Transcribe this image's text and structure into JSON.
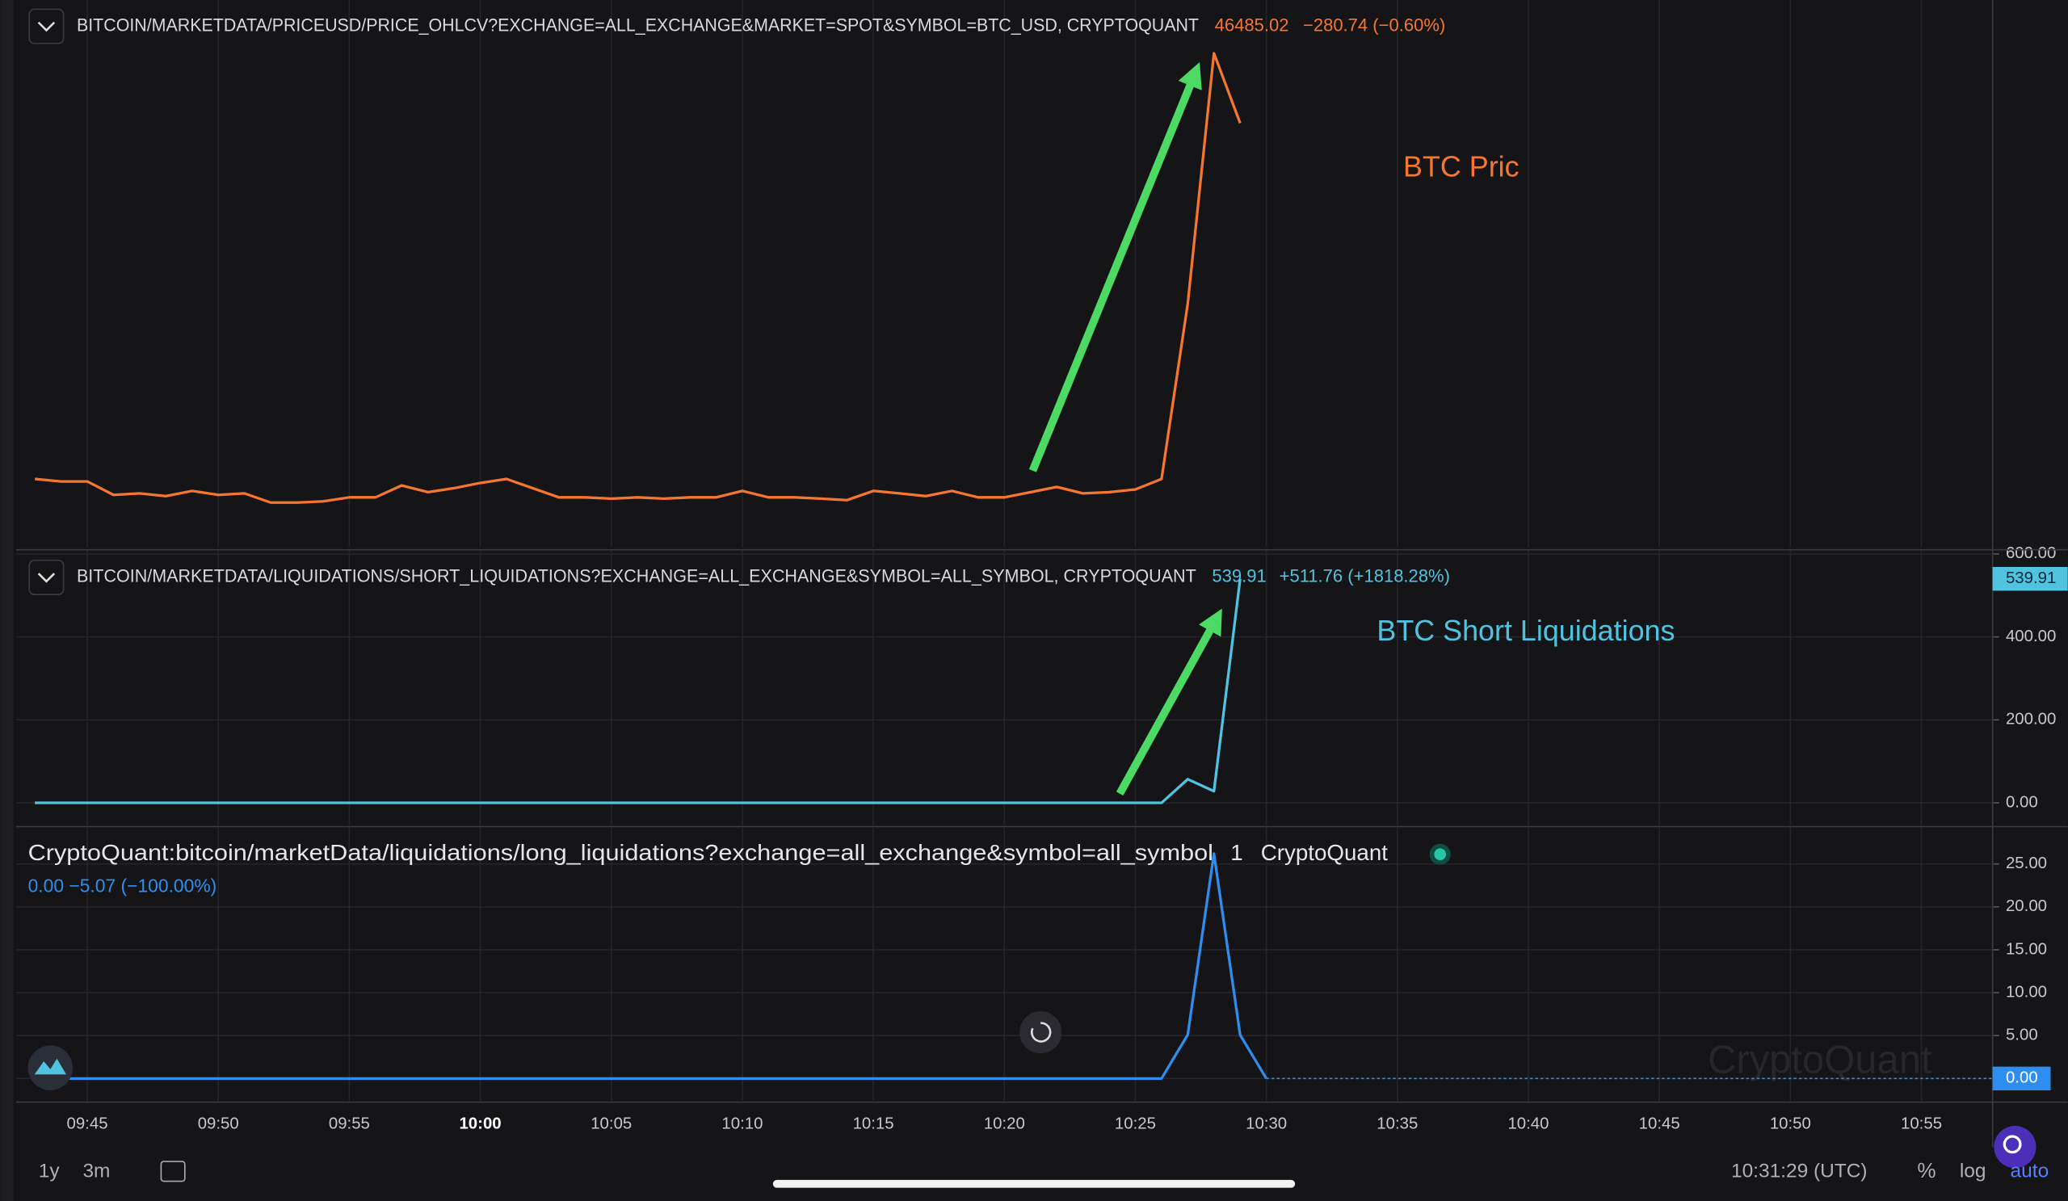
{
  "chart_data": [
    {
      "type": "line",
      "header": "BITCOIN/MARKETDATA/PRICEUSD/PRICE_OHLCV?EXCHANGE=ALL_EXCHANGE&MARKET=SPOT&SYMBOL=BTC_USD, CRYPTOQUANT",
      "change": "−280.74 (−0.60%)",
      "annotation": "BTC Pric",
      "color": "#f7762f",
      "ylim": [
        44780,
        46980
      ],
      "x": [
        "09:43",
        "09:44",
        "09:45",
        "09:46",
        "09:47",
        "09:48",
        "09:49",
        "09:50",
        "09:51",
        "09:52",
        "09:53",
        "09:54",
        "09:55",
        "09:56",
        "09:57",
        "09:58",
        "09:59",
        "10:00",
        "10:01",
        "10:02",
        "10:03",
        "10:04",
        "10:05",
        "10:06",
        "10:07",
        "10:08",
        "10:09",
        "10:10",
        "10:11",
        "10:12",
        "10:13",
        "10:14",
        "10:15",
        "10:16",
        "10:17",
        "10:18",
        "10:19",
        "10:20",
        "10:21",
        "10:22",
        "10:23",
        "10:24",
        "10:25",
        "10:26",
        "10:27",
        "10:28",
        "10:29"
      ],
      "values": [
        45054,
        45044,
        45044,
        44990,
        44996,
        44985,
        45006,
        44990,
        44996,
        44959,
        44959,
        44964,
        44980,
        44980,
        45028,
        45001,
        45017,
        45038,
        45054,
        45017,
        44980,
        44980,
        44975,
        44980,
        44975,
        44980,
        44980,
        45006,
        44980,
        44980,
        44975,
        44969,
        45006,
        44996,
        44985,
        45006,
        44980,
        44980,
        45001,
        45022,
        44996,
        45001,
        45012,
        45054,
        45759,
        46765.76,
        46485.02
      ]
    },
    {
      "type": "line",
      "header": "BITCOIN/MARKETDATA/LIQUIDATIONS/SHORT_LIQUIDATIONS?EXCHANGE=ALL_EXCHANGE&SYMBOL=ALL_SYMBOL, CRYPTOQUANT",
      "change": "+511.76 (+1818.28%)",
      "annotation": "BTC Short Liquidations",
      "color": "#4fc3e0",
      "ylim": [
        -54,
        610
      ],
      "yticks": [
        {
          "value": 0,
          "label": "0.00"
        },
        {
          "value": 200,
          "label": "200.00"
        },
        {
          "value": 400,
          "label": "400.00"
        },
        {
          "value": 600,
          "label": "600.00"
        }
      ],
      "x": [
        "09:43",
        "09:44",
        "09:45",
        "09:46",
        "09:47",
        "09:48",
        "09:49",
        "09:50",
        "09:51",
        "09:52",
        "09:53",
        "09:54",
        "09:55",
        "09:56",
        "09:57",
        "09:58",
        "09:59",
        "10:00",
        "10:01",
        "10:02",
        "10:03",
        "10:04",
        "10:05",
        "10:06",
        "10:07",
        "10:08",
        "10:09",
        "10:10",
        "10:11",
        "10:12",
        "10:13",
        "10:14",
        "10:15",
        "10:16",
        "10:17",
        "10:18",
        "10:19",
        "10:20",
        "10:21",
        "10:22",
        "10:23",
        "10:24",
        "10:25",
        "10:26",
        "10:27",
        "10:28",
        "10:29"
      ],
      "values": [
        0,
        0,
        0,
        0,
        0,
        0,
        0,
        0,
        0,
        0,
        0,
        0,
        0,
        0,
        0,
        0,
        0,
        0,
        0,
        0,
        0,
        0,
        0,
        0,
        0,
        0,
        0,
        0,
        0,
        0,
        0,
        0,
        0,
        0,
        0,
        0,
        0,
        0,
        0,
        0,
        0,
        0,
        0,
        0,
        57,
        28.15,
        539.91
      ]
    },
    {
      "type": "line",
      "header": "CryptoQuant:bitcoin/marketData/liquidations/long_liquidations?exchange=all_exchange&symbol=all_symbol",
      "interval": "1",
      "source": "CryptoQuant",
      "status": "0.00 −5.07 (−100.00%)",
      "last_label": "0.00",
      "watermark": "CryptoQuant",
      "color": "#2e8ef0",
      "ylim": [
        -2.6,
        29.2
      ],
      "yticks": [
        {
          "value": 0,
          "label": "0.00"
        },
        {
          "value": 5,
          "label": "5.00"
        },
        {
          "value": 10,
          "label": "10.00"
        },
        {
          "value": 15,
          "label": "15.00"
        },
        {
          "value": 20,
          "label": "20.00"
        },
        {
          "value": 25,
          "label": "25.00"
        }
      ],
      "x": [
        "09:43",
        "09:44",
        "09:45",
        "09:46",
        "09:47",
        "09:48",
        "09:49",
        "09:50",
        "09:51",
        "09:52",
        "09:53",
        "09:54",
        "09:55",
        "09:56",
        "09:57",
        "09:58",
        "09:59",
        "10:00",
        "10:01",
        "10:02",
        "10:03",
        "10:04",
        "10:05",
        "10:06",
        "10:07",
        "10:08",
        "10:09",
        "10:10",
        "10:11",
        "10:12",
        "10:13",
        "10:14",
        "10:15",
        "10:16",
        "10:17",
        "10:18",
        "10:19",
        "10:20",
        "10:21",
        "10:22",
        "10:23",
        "10:24",
        "10:25",
        "10:26",
        "10:27",
        "10:28",
        "10:29",
        "10:30"
      ],
      "values": [
        0,
        0,
        0,
        0,
        0,
        0,
        0,
        0,
        0,
        0,
        0,
        0,
        0,
        0,
        0,
        0,
        0,
        0,
        0,
        0,
        0,
        0,
        0,
        0,
        0,
        0,
        0,
        0,
        0,
        0,
        0,
        0,
        0,
        0,
        0,
        0,
        0,
        0,
        0,
        0,
        0,
        0,
        0,
        0,
        5.1,
        26.2,
        5.07,
        0
      ]
    }
  ],
  "x_axis": {
    "ticks": [
      "09:45",
      "09:50",
      "09:55",
      "10:00",
      "10:05",
      "10:10",
      "10:15",
      "10:20",
      "10:25",
      "10:30",
      "10:35",
      "10:40",
      "10:45",
      "10:50",
      "10:55"
    ]
  },
  "toolbar": {
    "ranges": [
      "1y",
      "3m"
    ],
    "time": "10:31:29 (UTC)",
    "options": [
      "%",
      "log",
      "auto"
    ]
  }
}
